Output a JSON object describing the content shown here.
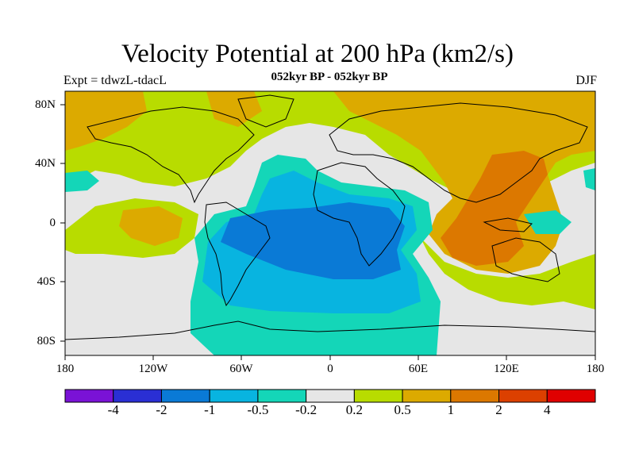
{
  "title": "Velocity Potential at 200 hPa (km2/s)",
  "subtitle": "052kyr BP - 052kyr BP",
  "left_label": "Expt = tdwzL-tdacL",
  "right_label": "DJF",
  "lat_ticks": [
    "80N",
    "40N",
    "0",
    "40S",
    "80S"
  ],
  "lon_ticks": [
    "180",
    "120W",
    "60W",
    "0",
    "60E",
    "120E",
    "180"
  ],
  "colorbar": {
    "colors": [
      "#7a12d6",
      "#2a2fd4",
      "#0a7ad6",
      "#08b4e0",
      "#14d6b8",
      "#e6e6e6",
      "#b8dc00",
      "#dcaa00",
      "#dc7800",
      "#dc4000",
      "#e00000"
    ],
    "labels": [
      "-4",
      "-2",
      "-1",
      "-0.5",
      "-0.2",
      "0.2",
      "0.5",
      "1",
      "2",
      "4"
    ]
  }
}
